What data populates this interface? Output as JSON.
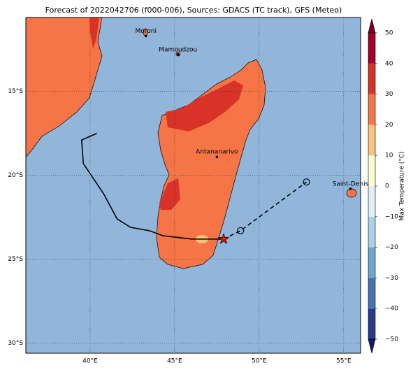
{
  "chart_data": {
    "type": "map",
    "title": "Forecast of 2022042706 (f000-006), Sources: GDACS (TC track), GFS (Meteo)",
    "xlim": [
      36.2,
      56.0
    ],
    "ylim": [
      -30.6,
      -10.6
    ],
    "xticks": [
      {
        "value": 40,
        "label": "40°E"
      },
      {
        "value": 45,
        "label": "45°E"
      },
      {
        "value": 50,
        "label": "50°E"
      },
      {
        "value": 55,
        "label": "55°E"
      }
    ],
    "yticks": [
      {
        "value": -15,
        "label": "15°S"
      },
      {
        "value": -20,
        "label": "20°S"
      },
      {
        "value": -25,
        "label": "25°S"
      },
      {
        "value": -30,
        "label": "30°S"
      }
    ],
    "grid": true,
    "track": {
      "lon": [
        40.4,
        39.5,
        39.6,
        40.8,
        41.6,
        42.4,
        43.5,
        44.3,
        46.0,
        47.9
      ],
      "lat": [
        -17.5,
        -17.9,
        -19.3,
        -21.1,
        -22.6,
        -23.1,
        -23.3,
        -23.6,
        -23.8,
        -23.8
      ],
      "color": "#000000"
    },
    "forecast": {
      "lon": [
        47.9,
        48.9,
        52.8
      ],
      "lat": [
        -23.8,
        -23.3,
        -20.4
      ],
      "color": "#000000"
    },
    "current": {
      "lon": 47.9,
      "lat": -23.8,
      "color": "#e8180c"
    },
    "cities": [
      {
        "name": "Moroni",
        "lon": 43.3,
        "lat": -11.7
      },
      {
        "name": "Mamoudzou",
        "lon": 45.2,
        "lat": -12.8
      },
      {
        "name": "Antananarivo",
        "lon": 47.5,
        "lat": -18.9
      },
      {
        "name": "Saint-Denis",
        "lon": 55.4,
        "lat": -20.8
      }
    ],
    "colorbar": {
      "label": "Max Temperature (°C)",
      "lim": [
        -50,
        50
      ],
      "levels": [
        -50,
        -40,
        -30,
        -20,
        -10,
        0,
        10,
        20,
        30,
        40,
        50
      ],
      "colors": [
        "#2b3a91",
        "#4672b1",
        "#72a6cf",
        "#a8d3e6",
        "#dcf0f6",
        "#fefbd2",
        "#fdc17c",
        "#f57546",
        "#d93226",
        "#a50026"
      ],
      "under": "#18186a",
      "over": "#7c0022",
      "ticks": [
        {
          "value": 50,
          "label": "50"
        },
        {
          "value": 40,
          "label": "40"
        },
        {
          "value": 30,
          "label": "30"
        },
        {
          "value": 20,
          "label": "20"
        },
        {
          "value": 10,
          "label": "10"
        },
        {
          "value": 0,
          "label": "0"
        },
        {
          "value": -10,
          "label": "−10"
        },
        {
          "value": -20,
          "label": "−20"
        },
        {
          "value": -30,
          "label": "−30"
        },
        {
          "value": -40,
          "label": "−40"
        },
        {
          "value": -50,
          "label": "−50"
        }
      ]
    }
  }
}
